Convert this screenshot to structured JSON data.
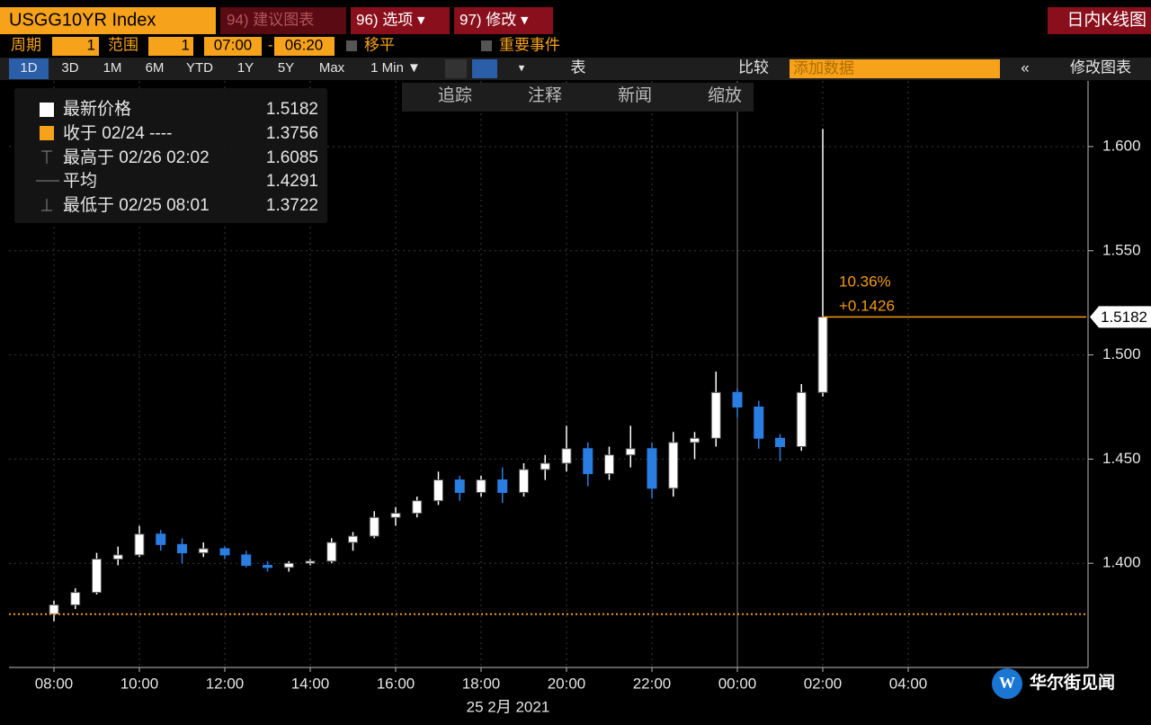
{
  "toolbar": {
    "security": "USGG10YR Index",
    "buttons": [
      "94) 建议图表",
      "96) 选项 ▾",
      "97) 修改 ▾"
    ],
    "chart_kind": "日内K线图"
  },
  "settings": {
    "period_label": "周期",
    "period": "1",
    "range_label": "范围",
    "range": "1",
    "start": "07:00",
    "sep": "-",
    "end": "06:20",
    "level": "移平",
    "events": "重要事件"
  },
  "ranges": [
    "1D",
    "3D",
    "1M",
    "6M",
    "YTD",
    "1Y",
    "5Y",
    "Max",
    "1 Min ▼"
  ],
  "controls": {
    "table": "表",
    "compare": "比较",
    "add": "添加数据",
    "edit": "修改图表"
  },
  "tools": [
    "追踪",
    "注释",
    "新闻",
    "缩放"
  ],
  "watermark": "华尔街见闻",
  "chart_data": {
    "type": "candlestick",
    "x": [
      "08:00",
      null,
      null,
      null,
      "10:00",
      null,
      null,
      null,
      "12:00",
      null,
      null,
      null,
      "14:00",
      null,
      null,
      null,
      "16:00",
      null,
      null,
      null,
      "18:00",
      null,
      null,
      null,
      "20:00",
      null,
      null,
      null,
      "22:00",
      null,
      null,
      null,
      "00:00",
      null,
      null,
      null,
      "02:00",
      null,
      null,
      null,
      "04:00",
      null,
      null,
      null,
      null,
      null,
      null,
      null
    ],
    "open": [
      1.3756,
      1.38,
      1.386,
      1.402,
      1.404,
      1.414,
      1.409,
      1.405,
      1.407,
      1.404,
      1.399,
      1.398,
      1.4,
      1.401,
      1.41,
      1.413,
      1.422,
      1.424,
      1.43,
      1.44,
      1.434,
      1.44,
      1.434,
      1.445,
      1.448,
      1.455,
      1.443,
      1.452,
      1.455,
      1.436,
      1.458,
      1.46,
      1.482,
      1.475,
      1.46,
      1.456,
      1.482,
      null,
      null,
      null,
      null,
      null,
      null,
      null,
      null,
      null,
      null,
      null
    ],
    "high": [
      1.382,
      1.388,
      1.405,
      1.408,
      1.418,
      1.416,
      1.412,
      1.41,
      1.408,
      1.406,
      1.401,
      1.401,
      1.402,
      1.412,
      1.415,
      1.425,
      1.427,
      1.432,
      1.444,
      1.442,
      1.442,
      1.446,
      1.448,
      1.452,
      1.466,
      1.458,
      1.456,
      1.466,
      1.458,
      1.463,
      1.463,
      1.492,
      1.484,
      1.478,
      1.462,
      1.486,
      1.6085,
      null,
      null,
      null,
      null,
      null,
      null,
      null,
      null,
      null,
      null,
      null
    ],
    "low": [
      1.3722,
      1.378,
      1.385,
      1.399,
      1.403,
      1.406,
      1.4,
      1.403,
      1.402,
      1.398,
      1.396,
      1.396,
      1.399,
      1.4,
      1.406,
      1.412,
      1.418,
      1.422,
      1.428,
      1.43,
      1.432,
      1.429,
      1.432,
      1.44,
      1.444,
      1.437,
      1.44,
      1.446,
      1.431,
      1.432,
      1.45,
      1.456,
      1.47,
      1.455,
      1.449,
      1.454,
      1.48,
      null,
      null,
      null,
      null,
      null,
      null,
      null,
      null,
      null,
      null,
      null
    ],
    "close": [
      1.38,
      1.386,
      1.402,
      1.404,
      1.414,
      1.409,
      1.405,
      1.407,
      1.404,
      1.399,
      1.398,
      1.4,
      1.401,
      1.41,
      1.413,
      1.422,
      1.424,
      1.43,
      1.44,
      1.434,
      1.44,
      1.434,
      1.445,
      1.448,
      1.455,
      1.443,
      1.452,
      1.455,
      1.436,
      1.458,
      1.46,
      1.482,
      1.475,
      1.46,
      1.456,
      1.482,
      1.5182,
      null,
      null,
      null,
      null,
      null,
      null,
      null,
      null,
      null,
      null,
      null
    ],
    "up_color": "#ffffff",
    "down_color": "#2a7de1",
    "ref_color": "#f39c12",
    "grid": true,
    "ylim": [
      1.35,
      1.6315
    ],
    "yticks": [
      {
        "value": 1.4,
        "label": "1.400"
      },
      {
        "value": 1.45,
        "label": "1.450"
      },
      {
        "value": 1.5,
        "label": "1.500"
      },
      {
        "value": 1.55,
        "label": "1.550"
      },
      {
        "value": 1.6,
        "label": "1.600"
      }
    ],
    "xlabel": "25 2月 2021",
    "stats": [
      {
        "label": "最新价格",
        "value": 1.5182
      },
      {
        "label": "收于 02/24 ----",
        "value": 1.3756
      },
      {
        "label": "最高于 02/26 02:02",
        "value": 1.6085
      },
      {
        "label": "平均",
        "value": 1.4291
      },
      {
        "label": "最低于 02/25 08:01",
        "value": 1.3722
      }
    ],
    "annotations": {
      "pct": "10.36%",
      "change": "+0.1426"
    }
  }
}
